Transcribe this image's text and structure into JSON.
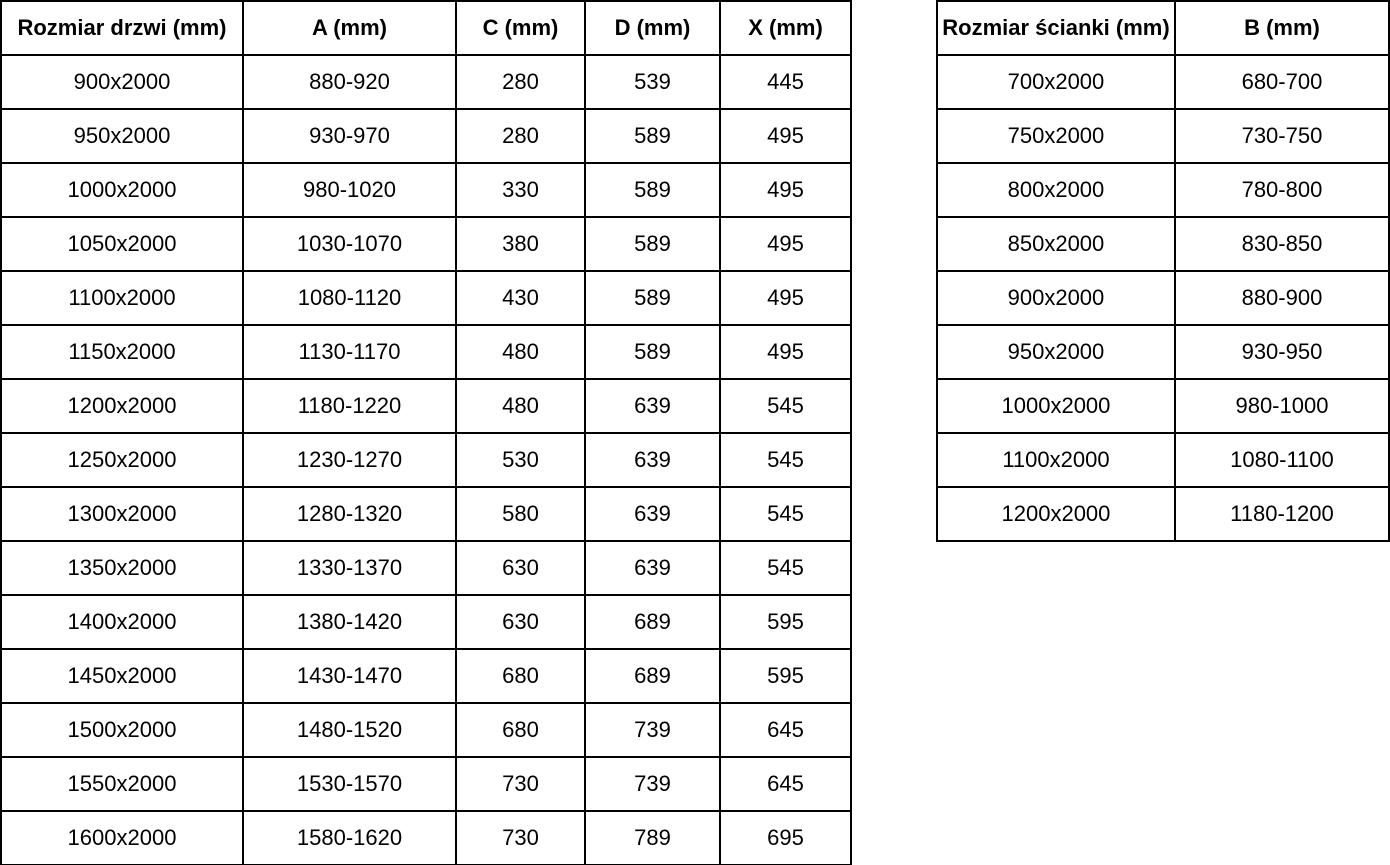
{
  "page": {
    "background": "#ffffff",
    "text_color": "#000000",
    "border_color": "#000000"
  },
  "door_table": {
    "headers": [
      "Rozmiar drzwi (mm)",
      "A (mm)",
      "C (mm)",
      "D (mm)",
      "X (mm)"
    ],
    "rows": [
      [
        "900x2000",
        "880-920",
        "280",
        "539",
        "445"
      ],
      [
        "950x2000",
        "930-970",
        "280",
        "589",
        "495"
      ],
      [
        "1000x2000",
        "980-1020",
        "330",
        "589",
        "495"
      ],
      [
        "1050x2000",
        "1030-1070",
        "380",
        "589",
        "495"
      ],
      [
        "1100x2000",
        "1080-1120",
        "430",
        "589",
        "495"
      ],
      [
        "1150x2000",
        "1130-1170",
        "480",
        "589",
        "495"
      ],
      [
        "1200x2000",
        "1180-1220",
        "480",
        "639",
        "545"
      ],
      [
        "1250x2000",
        "1230-1270",
        "530",
        "639",
        "545"
      ],
      [
        "1300x2000",
        "1280-1320",
        "580",
        "639",
        "545"
      ],
      [
        "1350x2000",
        "1330-1370",
        "630",
        "639",
        "545"
      ],
      [
        "1400x2000",
        "1380-1420",
        "630",
        "689",
        "595"
      ],
      [
        "1450x2000",
        "1430-1470",
        "680",
        "689",
        "595"
      ],
      [
        "1500x2000",
        "1480-1520",
        "680",
        "739",
        "645"
      ],
      [
        "1550x2000",
        "1530-1570",
        "730",
        "739",
        "645"
      ],
      [
        "1600x2000",
        "1580-1620",
        "730",
        "789",
        "695"
      ]
    ]
  },
  "wall_table": {
    "headers": [
      "Rozmiar ścianki (mm)",
      "B (mm)"
    ],
    "rows": [
      [
        "700x2000",
        "680-700"
      ],
      [
        "750x2000",
        "730-750"
      ],
      [
        "800x2000",
        "780-800"
      ],
      [
        "850x2000",
        "830-850"
      ],
      [
        "900x2000",
        "880-900"
      ],
      [
        "950x2000",
        "930-950"
      ],
      [
        "1000x2000",
        "980-1000"
      ],
      [
        "1100x2000",
        "1080-1100"
      ],
      [
        "1200x2000",
        "1180-1200"
      ]
    ]
  }
}
